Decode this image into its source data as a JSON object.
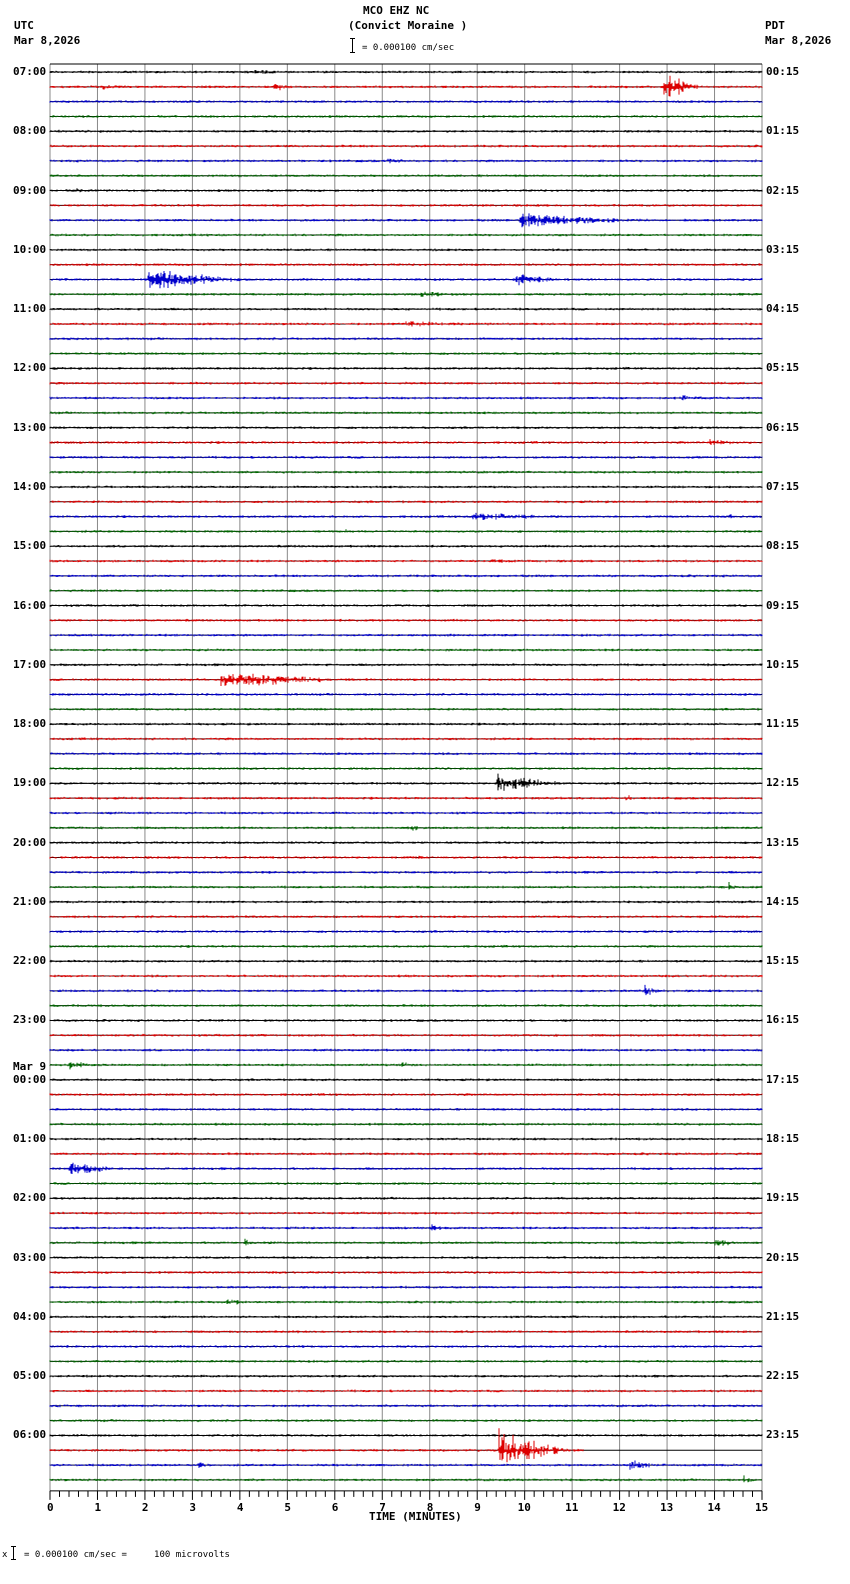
{
  "header": {
    "station": "MCO EHZ NC",
    "location": "(Convict Moraine )",
    "scale": "= 0.000100 cm/sec",
    "left_tz": "UTC",
    "left_date": "Mar 8,2026",
    "right_tz": "PDT",
    "right_date": "Mar 8,2026"
  },
  "footer": {
    "prefix": "x",
    "scale": "= 0.000100 cm/sec =     100 microvolts"
  },
  "chart_data": {
    "type": "line",
    "title": "MCO EHZ NC (Convict Moraine )",
    "xlabel": "TIME (MINUTES)",
    "ylabel": "",
    "xlim": [
      0,
      15
    ],
    "x_ticks": [
      0,
      1,
      2,
      3,
      4,
      5,
      6,
      7,
      8,
      9,
      10,
      11,
      12,
      13,
      14,
      15
    ],
    "minor_ticks_per_minute": 5,
    "grid": true,
    "trace_colors": [
      "#000000",
      "#dd0000",
      "#0000cc",
      "#006600"
    ],
    "traces_per_hour": 4,
    "minutes_per_trace": 15,
    "left_labels": [
      {
        "row": 0,
        "text": "07:00"
      },
      {
        "row": 4,
        "text": "08:00"
      },
      {
        "row": 8,
        "text": "09:00"
      },
      {
        "row": 12,
        "text": "10:00"
      },
      {
        "row": 16,
        "text": "11:00"
      },
      {
        "row": 20,
        "text": "12:00"
      },
      {
        "row": 24,
        "text": "13:00"
      },
      {
        "row": 28,
        "text": "14:00"
      },
      {
        "row": 32,
        "text": "15:00"
      },
      {
        "row": 36,
        "text": "16:00"
      },
      {
        "row": 40,
        "text": "17:00"
      },
      {
        "row": 44,
        "text": "18:00"
      },
      {
        "row": 48,
        "text": "19:00"
      },
      {
        "row": 52,
        "text": "20:00"
      },
      {
        "row": 56,
        "text": "21:00"
      },
      {
        "row": 60,
        "text": "22:00"
      },
      {
        "row": 64,
        "text": "23:00"
      },
      {
        "row": 68,
        "text": "00:00",
        "date": "Mar 9"
      },
      {
        "row": 72,
        "text": "01:00"
      },
      {
        "row": 76,
        "text": "02:00"
      },
      {
        "row": 80,
        "text": "03:00"
      },
      {
        "row": 84,
        "text": "04:00"
      },
      {
        "row": 88,
        "text": "05:00"
      },
      {
        "row": 92,
        "text": "06:00"
      }
    ],
    "right_labels": [
      {
        "row": 0,
        "text": "00:15"
      },
      {
        "row": 4,
        "text": "01:15"
      },
      {
        "row": 8,
        "text": "02:15"
      },
      {
        "row": 12,
        "text": "03:15"
      },
      {
        "row": 16,
        "text": "04:15"
      },
      {
        "row": 20,
        "text": "05:15"
      },
      {
        "row": 24,
        "text": "06:15"
      },
      {
        "row": 28,
        "text": "07:15"
      },
      {
        "row": 32,
        "text": "08:15"
      },
      {
        "row": 36,
        "text": "09:15"
      },
      {
        "row": 40,
        "text": "10:15"
      },
      {
        "row": 44,
        "text": "11:15"
      },
      {
        "row": 48,
        "text": "12:15"
      },
      {
        "row": 52,
        "text": "13:15"
      },
      {
        "row": 56,
        "text": "14:15"
      },
      {
        "row": 60,
        "text": "15:15"
      },
      {
        "row": 64,
        "text": "16:15"
      },
      {
        "row": 68,
        "text": "17:15"
      },
      {
        "row": 72,
        "text": "18:15"
      },
      {
        "row": 76,
        "text": "19:15"
      },
      {
        "row": 80,
        "text": "20:15"
      },
      {
        "row": 84,
        "text": "21:15"
      },
      {
        "row": 88,
        "text": "22:15"
      },
      {
        "row": 92,
        "text": "23:15"
      }
    ],
    "num_traces": 96,
    "events": [
      {
        "row": 1,
        "start": 12.9,
        "amp": 12,
        "dur": 1.0,
        "note": "local event"
      },
      {
        "row": 1,
        "start": 4.7,
        "amp": 4,
        "dur": 0.6
      },
      {
        "row": 1,
        "start": 1.1,
        "amp": 2.5,
        "dur": 0.6
      },
      {
        "row": 0,
        "start": 4.3,
        "amp": 2,
        "dur": 1.6
      },
      {
        "row": 6,
        "start": 7.1,
        "amp": 2.5,
        "dur": 1.0
      },
      {
        "row": 8,
        "start": 0.5,
        "amp": 2,
        "dur": 1.2
      },
      {
        "row": 10,
        "start": 9.9,
        "amp": 6,
        "dur": 3.5
      },
      {
        "row": 14,
        "start": 2.05,
        "amp": 9,
        "dur": 3.0
      },
      {
        "row": 14,
        "start": 9.8,
        "amp": 6,
        "dur": 1.4
      },
      {
        "row": 15,
        "start": 7.8,
        "amp": 3,
        "dur": 1.2
      },
      {
        "row": 17,
        "start": 7.5,
        "amp": 3,
        "dur": 2.4
      },
      {
        "row": 22,
        "start": 13.3,
        "amp": 3,
        "dur": 1.0
      },
      {
        "row": 25,
        "start": 13.9,
        "amp": 3.5,
        "dur": 1.1
      },
      {
        "row": 30,
        "start": 8.9,
        "amp": 3.5,
        "dur": 3.2
      },
      {
        "row": 30,
        "start": 14.3,
        "amp": 4,
        "dur": 0.2
      },
      {
        "row": 31,
        "start": 6.2,
        "amp": 4,
        "dur": 0.15
      },
      {
        "row": 33,
        "start": 9.3,
        "amp": 2.5,
        "dur": 1.0
      },
      {
        "row": 41,
        "start": 3.6,
        "amp": 7,
        "dur": 3.6
      },
      {
        "row": 48,
        "start": 9.4,
        "amp": 8,
        "dur": 2.0
      },
      {
        "row": 49,
        "start": 12.1,
        "amp": 3,
        "dur": 0.6
      },
      {
        "row": 51,
        "start": 7.6,
        "amp": 3,
        "dur": 0.6
      },
      {
        "row": 53,
        "start": 7.7,
        "amp": 3,
        "dur": 0.4
      },
      {
        "row": 55,
        "start": 14.3,
        "amp": 4,
        "dur": 0.3
      },
      {
        "row": 62,
        "start": 12.5,
        "amp": 5,
        "dur": 0.5
      },
      {
        "row": 67,
        "start": 0.4,
        "amp": 4,
        "dur": 0.7
      },
      {
        "row": 67,
        "start": 7.4,
        "amp": 3,
        "dur": 0.7
      },
      {
        "row": 74,
        "start": 0.4,
        "amp": 6,
        "dur": 1.4
      },
      {
        "row": 78,
        "start": 8.0,
        "amp": 3,
        "dur": 0.8
      },
      {
        "row": 79,
        "start": 4.1,
        "amp": 3.5,
        "dur": 0.6
      },
      {
        "row": 79,
        "start": 14.0,
        "amp": 3.5,
        "dur": 0.8
      },
      {
        "row": 83,
        "start": 3.7,
        "amp": 3,
        "dur": 1.0
      },
      {
        "row": 92,
        "start": 5.8,
        "amp": 3,
        "dur": 0.3
      },
      {
        "row": 93,
        "start": 9.45,
        "amp": 16,
        "dur": 1.8,
        "note": "largest event"
      },
      {
        "row": 94,
        "start": 12.2,
        "amp": 4,
        "dur": 1.0
      },
      {
        "row": 94,
        "start": 3.1,
        "amp": 3,
        "dur": 0.5
      },
      {
        "row": 95,
        "start": 14.6,
        "amp": 4,
        "dur": 0.4
      }
    ]
  }
}
